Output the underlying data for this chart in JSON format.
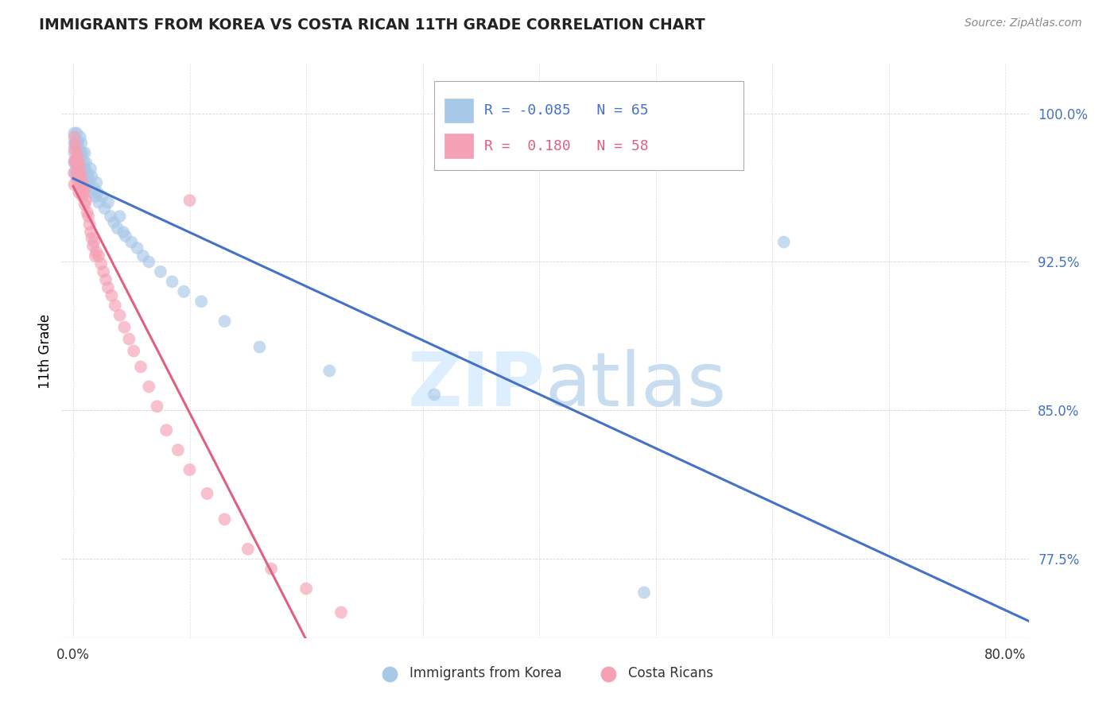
{
  "title": "IMMIGRANTS FROM KOREA VS COSTA RICAN 11TH GRADE CORRELATION CHART",
  "source": "Source: ZipAtlas.com",
  "xlabel_ticks": [
    "0.0%",
    "",
    "",
    "",
    "",
    "",
    "",
    "",
    "80.0%"
  ],
  "xlabel_ticks_vals": [
    0.0,
    0.1,
    0.2,
    0.3,
    0.4,
    0.5,
    0.6,
    0.7,
    0.8
  ],
  "ylabel_ticks": [
    "100.0%",
    "92.5%",
    "85.0%",
    "77.5%"
  ],
  "ylabel_ticks_vals": [
    1.0,
    0.925,
    0.85,
    0.775
  ],
  "ylabel": "11th Grade",
  "xlim": [
    -0.01,
    0.82
  ],
  "ylim": [
    0.735,
    1.025
  ],
  "legend_blue_label": "Immigrants from Korea",
  "legend_pink_label": "Costa Ricans",
  "blue_R": "-0.085",
  "blue_N": "65",
  "pink_R": "0.180",
  "pink_N": "58",
  "blue_color": "#a8c8e8",
  "pink_color": "#f5a0b5",
  "blue_line_color": "#4472c4",
  "pink_line_color": "#e06080",
  "watermark_color": "#ddeeff",
  "blue_scatter_x": [
    0.001,
    0.001,
    0.001,
    0.001,
    0.001,
    0.002,
    0.002,
    0.003,
    0.003,
    0.003,
    0.003,
    0.004,
    0.004,
    0.004,
    0.004,
    0.005,
    0.005,
    0.006,
    0.006,
    0.006,
    0.007,
    0.007,
    0.007,
    0.008,
    0.008,
    0.009,
    0.009,
    0.01,
    0.01,
    0.011,
    0.011,
    0.012,
    0.013,
    0.014,
    0.015,
    0.016,
    0.017,
    0.018,
    0.019,
    0.02,
    0.021,
    0.022,
    0.025,
    0.027,
    0.03,
    0.032,
    0.035,
    0.038,
    0.04,
    0.043,
    0.045,
    0.05,
    0.055,
    0.06,
    0.065,
    0.075,
    0.085,
    0.095,
    0.11,
    0.13,
    0.16,
    0.22,
    0.31,
    0.49,
    0.61
  ],
  "blue_scatter_y": [
    0.99,
    0.985,
    0.98,
    0.975,
    0.97,
    0.985,
    0.975,
    0.99,
    0.985,
    0.975,
    0.97,
    0.985,
    0.978,
    0.972,
    0.968,
    0.982,
    0.975,
    0.988,
    0.98,
    0.972,
    0.985,
    0.978,
    0.97,
    0.98,
    0.972,
    0.975,
    0.968,
    0.98,
    0.972,
    0.975,
    0.965,
    0.97,
    0.968,
    0.965,
    0.972,
    0.968,
    0.96,
    0.962,
    0.958,
    0.965,
    0.96,
    0.955,
    0.958,
    0.952,
    0.955,
    0.948,
    0.945,
    0.942,
    0.948,
    0.94,
    0.938,
    0.935,
    0.932,
    0.928,
    0.925,
    0.92,
    0.915,
    0.91,
    0.905,
    0.895,
    0.882,
    0.87,
    0.858,
    0.758,
    0.935
  ],
  "pink_scatter_x": [
    0.001,
    0.001,
    0.001,
    0.001,
    0.001,
    0.002,
    0.002,
    0.003,
    0.003,
    0.003,
    0.004,
    0.004,
    0.005,
    0.005,
    0.005,
    0.006,
    0.006,
    0.007,
    0.007,
    0.008,
    0.008,
    0.009,
    0.01,
    0.01,
    0.011,
    0.012,
    0.013,
    0.014,
    0.015,
    0.016,
    0.017,
    0.018,
    0.019,
    0.02,
    0.022,
    0.024,
    0.026,
    0.028,
    0.03,
    0.033,
    0.036,
    0.04,
    0.044,
    0.048,
    0.052,
    0.058,
    0.065,
    0.072,
    0.08,
    0.09,
    0.1,
    0.115,
    0.13,
    0.15,
    0.17,
    0.2,
    0.23,
    0.1
  ],
  "pink_scatter_y": [
    0.988,
    0.982,
    0.976,
    0.97,
    0.964,
    0.984,
    0.976,
    0.98,
    0.974,
    0.967,
    0.978,
    0.97,
    0.975,
    0.968,
    0.96,
    0.972,
    0.964,
    0.968,
    0.961,
    0.965,
    0.958,
    0.96,
    0.962,
    0.954,
    0.956,
    0.95,
    0.948,
    0.944,
    0.94,
    0.937,
    0.933,
    0.935,
    0.928,
    0.93,
    0.928,
    0.924,
    0.92,
    0.916,
    0.912,
    0.908,
    0.903,
    0.898,
    0.892,
    0.886,
    0.88,
    0.872,
    0.862,
    0.852,
    0.84,
    0.83,
    0.82,
    0.808,
    0.795,
    0.78,
    0.77,
    0.76,
    0.748,
    0.956
  ]
}
